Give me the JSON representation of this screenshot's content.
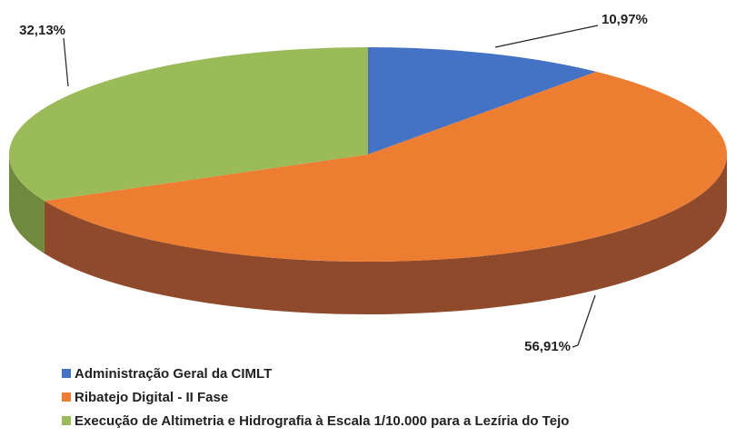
{
  "chart_data": {
    "type": "pie3d",
    "categories": [
      "Administração Geral da CIMLT",
      "Ribatejo Digital - II Fase",
      "Execução de Altimetria e Hidrografia à Escala 1/10.000 para a Lezíria do Tejo"
    ],
    "values": [
      10.97,
      56.91,
      32.13
    ],
    "value_labels": [
      "10,97%",
      "56,91%",
      "32,13%"
    ],
    "colors": [
      "#4472c4",
      "#ed7d31",
      "#9bbb59"
    ],
    "side_colors": [
      "#2f528f",
      "#8e4a2a",
      "#6f8a3c"
    ],
    "legend": "bottom-left"
  }
}
